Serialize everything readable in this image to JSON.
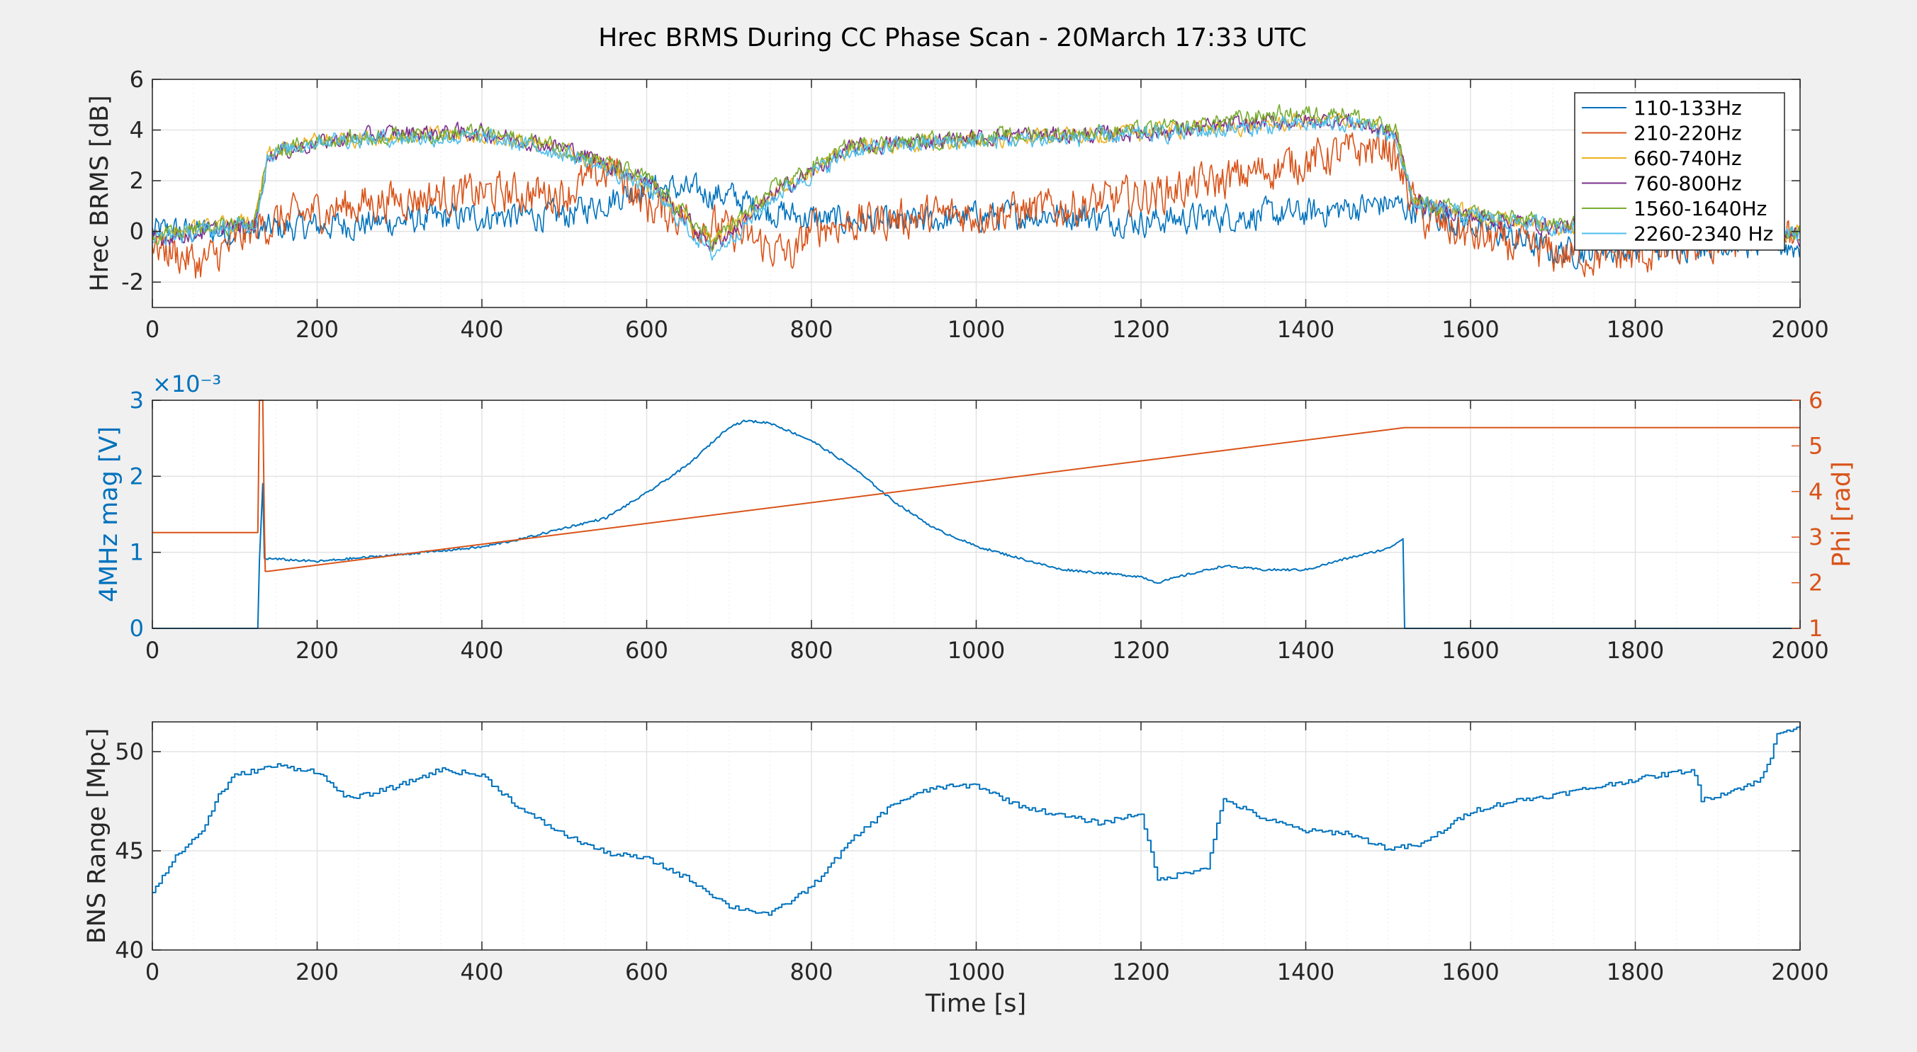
{
  "figure": {
    "title": "Hrec BRMS During CC Phase Scan - 20March 17:33 UTC"
  },
  "colors": {
    "blue": "#0072BD",
    "orange": "#D95319",
    "yellow": "#EDB120",
    "purple": "#7E2F8E",
    "green": "#77AC30",
    "cyan": "#4DBEEE",
    "axis": "#262626",
    "grid": "#e3e3e3",
    "bg": "#f0f0f0"
  },
  "chart_data": [
    {
      "type": "line",
      "title": "Hrec BRMS During CC Phase Scan - 20March 17:33 UTC",
      "xlabel": "",
      "ylabel": "Hrec BRMS [dB]",
      "xlim": [
        0,
        2000
      ],
      "ylim": [
        -3,
        6
      ],
      "xticks": [
        0,
        200,
        400,
        600,
        800,
        1000,
        1200,
        1400,
        1600,
        1800,
        2000
      ],
      "yticks": [
        -2,
        0,
        2,
        4,
        6
      ],
      "ytick_labels": [
        "-2",
        "0",
        "2",
        "4",
        "6"
      ],
      "grid": true,
      "legend_position": "top-right",
      "series": [
        {
          "name": "110-133Hz",
          "color": "#0072BD",
          "x": [
            0,
            100,
            200,
            300,
            400,
            500,
            600,
            700,
            750,
            800,
            900,
            1000,
            1100,
            1200,
            1300,
            1400,
            1500,
            1540,
            1600,
            1700,
            1800,
            1900,
            2000
          ],
          "y": [
            0,
            0,
            0.2,
            0.4,
            0.6,
            0.6,
            1.8,
            1.4,
            0.8,
            0.5,
            0.3,
            0.6,
            0.7,
            0.4,
            0.6,
            0.7,
            1.1,
            0.8,
            0.3,
            -0.8,
            -0.7,
            -0.4,
            -0.6
          ]
        },
        {
          "name": "210-220Hz",
          "color": "#D95319",
          "x": [
            0,
            60,
            130,
            200,
            300,
            400,
            500,
            560,
            600,
            680,
            780,
            800,
            900,
            1000,
            1100,
            1200,
            1300,
            1400,
            1500,
            1540,
            1600,
            1700,
            1800,
            1900,
            2000
          ],
          "y": [
            -0.5,
            -1.3,
            0.2,
            0.8,
            1.3,
            1.5,
            1.5,
            2.5,
            1.0,
            0.2,
            -1.0,
            0.2,
            0.5,
            0.7,
            0.9,
            1.4,
            2.0,
            2.8,
            3.4,
            0.5,
            -0.2,
            -0.9,
            -1.0,
            -0.5,
            0
          ]
        },
        {
          "name": "660-740Hz",
          "color": "#EDB120",
          "x": [
            0,
            125,
            140,
            200,
            300,
            400,
            500,
            600,
            680,
            760,
            850,
            950,
            1050,
            1150,
            1250,
            1350,
            1450,
            1510,
            1530,
            1600,
            1700,
            1800,
            1900,
            2000
          ],
          "y": [
            -0.2,
            0.4,
            3.0,
            3.6,
            3.8,
            3.8,
            3.2,
            2.0,
            -0.5,
            1.7,
            3.3,
            3.5,
            3.7,
            3.8,
            4.0,
            4.2,
            4.4,
            3.8,
            1.2,
            0.7,
            0.2,
            -0.1,
            0.2,
            -0.1
          ]
        },
        {
          "name": "760-800Hz",
          "color": "#7E2F8E",
          "x": [
            0,
            125,
            140,
            200,
            300,
            400,
            500,
            600,
            680,
            760,
            850,
            950,
            1050,
            1150,
            1250,
            1350,
            1450,
            1510,
            1530,
            1600,
            1700,
            1800,
            1900,
            2000
          ],
          "y": [
            -0.3,
            0.3,
            3.0,
            3.5,
            3.9,
            3.9,
            3.3,
            2.1,
            -0.6,
            1.6,
            3.3,
            3.6,
            3.8,
            3.8,
            4.0,
            4.3,
            4.4,
            3.8,
            1.2,
            0.6,
            0.2,
            0,
            0.1,
            -0.2
          ]
        },
        {
          "name": "1560-1640Hz",
          "color": "#77AC30",
          "x": [
            0,
            125,
            140,
            200,
            300,
            400,
            500,
            600,
            680,
            760,
            850,
            950,
            1050,
            1150,
            1250,
            1350,
            1450,
            1510,
            1530,
            1600,
            1700,
            1800,
            1900,
            2000
          ],
          "y": [
            -0.2,
            0.4,
            3.0,
            3.6,
            3.8,
            3.9,
            3.3,
            2.1,
            -0.4,
            1.8,
            3.4,
            3.6,
            3.8,
            3.9,
            4.1,
            4.6,
            4.7,
            3.9,
            1.2,
            0.7,
            0.3,
            0,
            0.2,
            0
          ]
        },
        {
          "name": "2260-2340 Hz",
          "color": "#4DBEEE",
          "x": [
            0,
            125,
            140,
            200,
            300,
            400,
            500,
            600,
            680,
            760,
            850,
            950,
            1050,
            1150,
            1250,
            1350,
            1450,
            1510,
            1530,
            1600,
            1700,
            1800,
            1900,
            2000
          ],
          "y": [
            -0.3,
            0.3,
            3.0,
            3.6,
            3.7,
            3.7,
            3.1,
            1.8,
            -0.9,
            1.5,
            3.2,
            3.5,
            3.6,
            3.7,
            3.9,
            4.1,
            4.3,
            3.7,
            1.1,
            0.6,
            0.2,
            -0.1,
            0.1,
            -0.2
          ]
        }
      ]
    },
    {
      "type": "line",
      "xlabel": "",
      "ylabel": "4MHz mag [V]",
      "ylabel_right": "Phi [rad]",
      "y_exponent_label": "×10⁻³",
      "xlim": [
        0,
        2000
      ],
      "ylim": [
        0,
        0.003
      ],
      "ylim_right": [
        1,
        6
      ],
      "xticks": [
        0,
        200,
        400,
        600,
        800,
        1000,
        1200,
        1400,
        1600,
        1800,
        2000
      ],
      "yticks": [
        0,
        0.001,
        0.002,
        0.003
      ],
      "ytick_labels": [
        "0",
        "1",
        "2",
        "3"
      ],
      "yticks_right": [
        1,
        2,
        3,
        4,
        5,
        6
      ],
      "grid": true,
      "series": [
        {
          "axis": "left",
          "color": "#0072BD",
          "x": [
            0,
            128,
            130,
            134,
            136,
            200,
            300,
            400,
            450,
            500,
            550,
            600,
            650,
            700,
            720,
            750,
            800,
            850,
            900,
            950,
            1000,
            1050,
            1100,
            1150,
            1200,
            1220,
            1250,
            1300,
            1350,
            1400,
            1450,
            1500,
            1518,
            1520,
            1600,
            1700,
            1800,
            1900,
            2000
          ],
          "y": [
            0,
            0,
            0.0009,
            0.0019,
            0.00092,
            0.00088,
            0.00097,
            0.00107,
            0.00118,
            0.00132,
            0.00145,
            0.00178,
            0.00215,
            0.00265,
            0.00273,
            0.0027,
            0.00247,
            0.00212,
            0.00167,
            0.00131,
            0.00108,
            0.00093,
            0.00078,
            0.00073,
            0.00068,
            0.0006,
            0.00069,
            0.00082,
            0.00077,
            0.00077,
            0.00092,
            0.00105,
            0.00118,
            0,
            0,
            0,
            0,
            0,
            0
          ]
        },
        {
          "axis": "right",
          "color": "#D95319",
          "x": [
            0,
            128,
            130,
            134,
            136,
            137,
            140,
            1520,
            2000
          ],
          "y": [
            3.1,
            3.1,
            6.0,
            6.0,
            3.2,
            2.25,
            2.25,
            5.4,
            5.4
          ]
        }
      ]
    },
    {
      "type": "line",
      "xlabel": "Time [s]",
      "ylabel": "BNS Range [Mpc]",
      "xlim": [
        0,
        2000
      ],
      "ylim": [
        40,
        51.5
      ],
      "xticks": [
        0,
        200,
        400,
        600,
        800,
        1000,
        1200,
        1400,
        1600,
        1800,
        2000
      ],
      "yticks": [
        40,
        45,
        50
      ],
      "ytick_labels": [
        "40",
        "45",
        "50"
      ],
      "grid": true,
      "series": [
        {
          "color": "#0072BD",
          "x": [
            0,
            30,
            60,
            80,
            100,
            150,
            200,
            220,
            240,
            300,
            350,
            400,
            450,
            500,
            550,
            600,
            650,
            700,
            750,
            800,
            850,
            900,
            950,
            1000,
            1050,
            1100,
            1150,
            1200,
            1215,
            1220,
            1280,
            1290,
            1300,
            1350,
            1400,
            1450,
            1500,
            1540,
            1600,
            1650,
            1700,
            1750,
            1800,
            1870,
            1880,
            1900,
            1950,
            1965,
            1970,
            2000
          ],
          "y": [
            43.0,
            44.8,
            46.0,
            47.8,
            48.8,
            49.3,
            49.0,
            48.2,
            47.6,
            48.3,
            49.1,
            48.8,
            47.0,
            45.8,
            44.9,
            44.6,
            43.6,
            42.2,
            41.8,
            43.2,
            45.6,
            47.4,
            48.2,
            48.3,
            47.3,
            46.8,
            46.4,
            46.9,
            44.3,
            43.5,
            44.2,
            46.0,
            47.6,
            46.6,
            46.0,
            45.9,
            45.1,
            45.3,
            47.0,
            47.5,
            47.8,
            48.2,
            48.6,
            49.1,
            47.6,
            47.8,
            48.5,
            49.7,
            51.0,
            51.2
          ]
        }
      ]
    }
  ]
}
